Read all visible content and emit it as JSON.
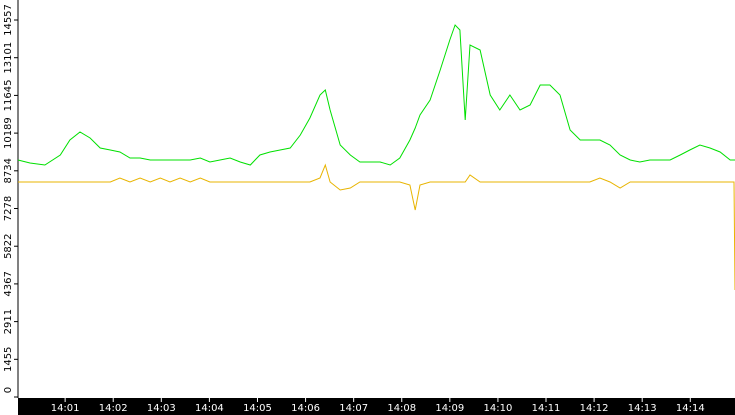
{
  "chart_data": {
    "type": "line",
    "x": [
      0.02,
      0.27,
      0.58,
      0.9,
      1.1,
      1.31,
      1.52,
      1.73,
      1.94,
      2.14,
      2.35,
      2.56,
      2.77,
      2.98,
      3.18,
      3.39,
      3.6,
      3.81,
      4.01,
      4.22,
      4.43,
      4.64,
      4.85,
      5.05,
      5.26,
      5.47,
      5.68,
      5.89,
      6.09,
      6.3,
      6.41,
      6.51,
      6.72,
      6.93,
      7.13,
      7.34,
      7.55,
      7.76,
      7.96,
      8.17,
      8.28,
      8.38,
      8.59,
      8.8,
      9.0,
      9.11,
      9.21,
      9.32,
      9.42,
      9.63,
      9.84,
      10.04,
      10.25,
      10.46,
      10.67,
      10.88,
      11.08,
      11.29,
      11.5,
      11.71,
      11.91,
      12.12,
      12.33,
      12.54,
      12.75,
      12.95,
      13.16,
      13.37,
      13.58,
      13.79,
      13.99,
      14.2,
      14.41,
      14.62,
      14.83,
      14.91,
      14.93
    ],
    "series": [
      {
        "name": "green",
        "color": "#00e000",
        "values": [
          9150,
          9035,
          8958,
          9344,
          9923,
          10232,
          10000,
          9614,
          9537,
          9459,
          9228,
          9228,
          9150,
          9150,
          9150,
          9150,
          9150,
          9228,
          9073,
          9150,
          9228,
          9073,
          8958,
          9344,
          9459,
          9537,
          9614,
          10116,
          10772,
          11660,
          11853,
          11081,
          9730,
          9344,
          9073,
          9073,
          9073,
          8958,
          9228,
          9923,
          10386,
          10888,
          11467,
          12625,
          13784,
          14363,
          14170,
          10695,
          13591,
          13398,
          11660,
          11081,
          11660,
          11081,
          11274,
          12046,
          12046,
          11660,
          10309,
          9923,
          9923,
          9923,
          9730,
          9344,
          9150,
          9073,
          9150,
          9150,
          9150,
          9344,
          9537,
          9730,
          9614,
          9459,
          9150,
          9150,
          9150
        ]
      },
      {
        "name": "yellow",
        "color": "#e8b400",
        "values": [
          8301,
          8301,
          8301,
          8301,
          8301,
          8301,
          8301,
          8301,
          8301,
          8456,
          8301,
          8456,
          8301,
          8456,
          8301,
          8456,
          8301,
          8456,
          8301,
          8301,
          8301,
          8301,
          8301,
          8301,
          8301,
          8301,
          8301,
          8301,
          8301,
          8456,
          8958,
          8301,
          7992,
          8069,
          8301,
          8301,
          8301,
          8301,
          8301,
          8185,
          7220,
          8185,
          8301,
          8301,
          8301,
          8301,
          8301,
          8301,
          8571,
          8301,
          8301,
          8301,
          8301,
          8301,
          8301,
          8301,
          8301,
          8301,
          8301,
          8301,
          8301,
          8456,
          8301,
          8069,
          8301,
          8301,
          8301,
          8301,
          8301,
          8301,
          8301,
          8301,
          8301,
          8301,
          8301,
          8301,
          4131
        ]
      }
    ],
    "xlim": [
      0.02,
      14.93
    ],
    "xticks": [
      {
        "value": 1,
        "label": "14:01"
      },
      {
        "value": 2,
        "label": "14:02"
      },
      {
        "value": 3,
        "label": "14:03"
      },
      {
        "value": 4,
        "label": "14:04"
      },
      {
        "value": 5,
        "label": "14:05"
      },
      {
        "value": 6,
        "label": "14:06"
      },
      {
        "value": 7,
        "label": "14:07"
      },
      {
        "value": 8,
        "label": "14:08"
      },
      {
        "value": 9,
        "label": "14:09"
      },
      {
        "value": 10,
        "label": "14:10"
      },
      {
        "value": 11,
        "label": "14:11"
      },
      {
        "value": 12,
        "label": "14:12"
      },
      {
        "value": 13,
        "label": "14:13"
      },
      {
        "value": 14,
        "label": "14:14"
      }
    ],
    "ylim": [
      0,
      15329
    ],
    "yticks": [
      0,
      1455,
      2911,
      4367,
      5822,
      7278,
      8734,
      10189,
      11645,
      13101,
      14557
    ]
  }
}
